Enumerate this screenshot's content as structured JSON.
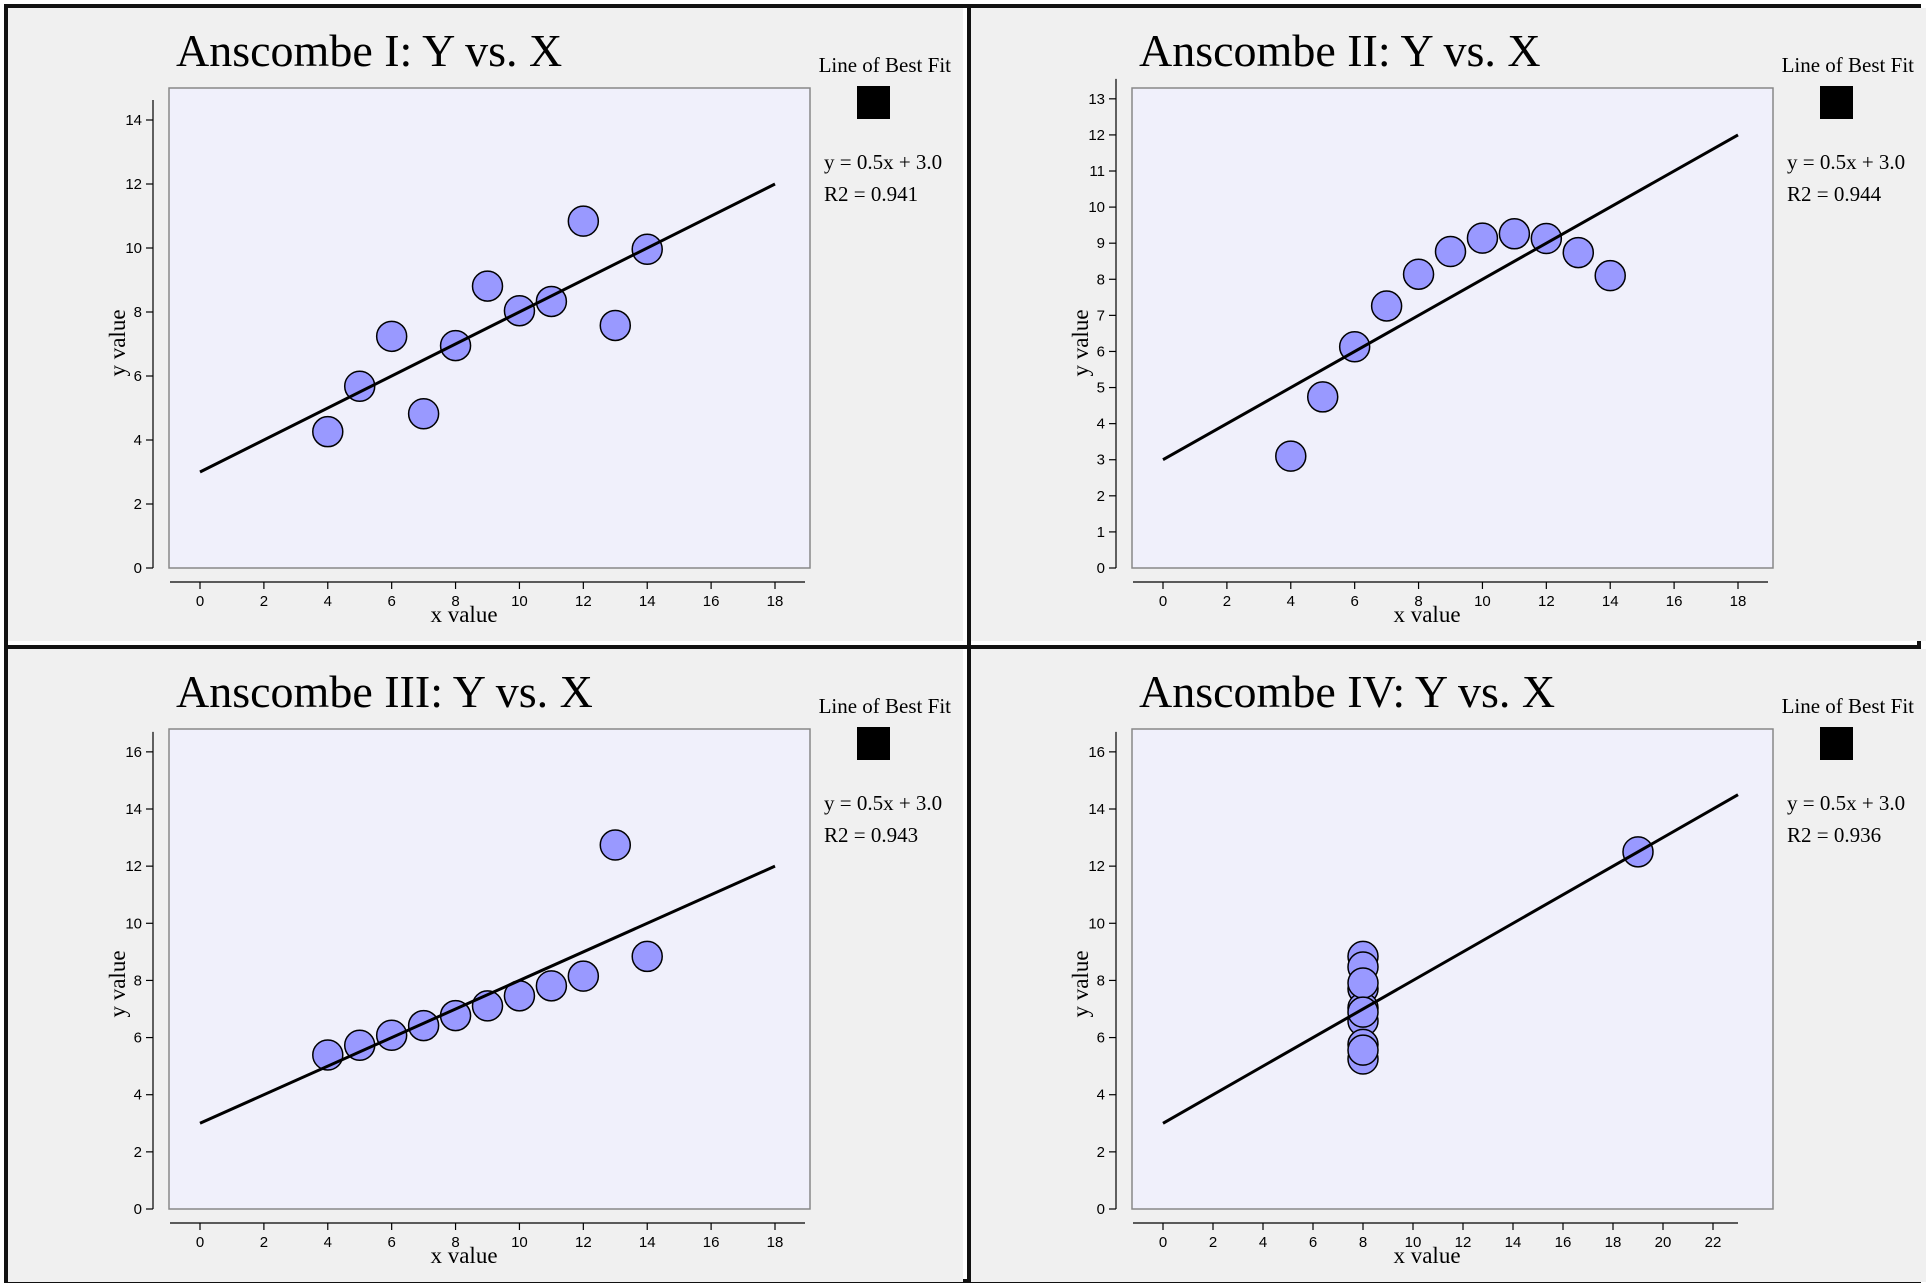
{
  "chart_data": [
    {
      "type": "scatter",
      "title": "Anscombe I: Y vs. X",
      "xlabel": "x value",
      "ylabel": "y value",
      "legend_title": "Line of Best Fit",
      "fit_equation": "y = 0.5x + 3.0",
      "r2_label": "R2 = 0.941",
      "fit_line": {
        "slope": 0.5,
        "intercept": 3.0,
        "x_range": [
          0,
          18
        ]
      },
      "xlim": [
        0,
        18
      ],
      "ylim": [
        0,
        15
      ],
      "x_ticks": [
        0,
        2,
        4,
        6,
        8,
        10,
        12,
        14,
        16,
        18
      ],
      "y_ticks": [
        0,
        2,
        4,
        6,
        8,
        10,
        12,
        14
      ],
      "points": {
        "x": [
          10,
          8,
          13,
          9,
          11,
          14,
          6,
          4,
          12,
          7,
          5
        ],
        "y": [
          8.04,
          6.95,
          7.58,
          8.81,
          8.33,
          9.96,
          7.24,
          4.26,
          10.84,
          4.82,
          5.68
        ]
      }
    },
    {
      "type": "scatter",
      "title": "Anscombe II: Y vs. X",
      "xlabel": "x value",
      "ylabel": "y value",
      "legend_title": "Line of Best Fit",
      "fit_equation": "y = 0.5x + 3.0",
      "r2_label": "R2 = 0.944",
      "fit_line": {
        "slope": 0.5,
        "intercept": 3.0,
        "x_range": [
          0,
          18
        ]
      },
      "xlim": [
        0,
        18
      ],
      "ylim": [
        0,
        13.3
      ],
      "x_ticks": [
        0,
        2,
        4,
        6,
        8,
        10,
        12,
        14,
        16,
        18
      ],
      "y_ticks": [
        0,
        1,
        2,
        3,
        4,
        5,
        6,
        7,
        8,
        9,
        10,
        11,
        12,
        13
      ],
      "points": {
        "x": [
          10,
          8,
          13,
          9,
          11,
          14,
          6,
          4,
          12,
          7,
          5
        ],
        "y": [
          9.14,
          8.14,
          8.74,
          8.77,
          9.26,
          8.1,
          6.13,
          3.1,
          9.13,
          7.26,
          4.74
        ]
      }
    },
    {
      "type": "scatter",
      "title": "Anscombe III: Y vs. X",
      "xlabel": "x value",
      "ylabel": "y value",
      "legend_title": "Line of Best Fit",
      "fit_equation": "y = 0.5x + 3.0",
      "r2_label": "R2 = 0.943",
      "fit_line": {
        "slope": 0.5,
        "intercept": 3.0,
        "x_range": [
          0,
          18
        ]
      },
      "xlim": [
        0,
        18
      ],
      "ylim": [
        0,
        16.8
      ],
      "x_ticks": [
        0,
        2,
        4,
        6,
        8,
        10,
        12,
        14,
        16,
        18
      ],
      "y_ticks": [
        0,
        2,
        4,
        6,
        8,
        10,
        12,
        14,
        16
      ],
      "points": {
        "x": [
          10,
          8,
          13,
          9,
          11,
          14,
          6,
          4,
          12,
          7,
          5
        ],
        "y": [
          7.46,
          6.77,
          12.74,
          7.11,
          7.81,
          8.84,
          6.08,
          5.39,
          8.15,
          6.42,
          5.73
        ]
      }
    },
    {
      "type": "scatter",
      "title": "Anscombe IV: Y vs. X",
      "xlabel": "x value",
      "ylabel": "y value",
      "legend_title": "Line of Best Fit",
      "fit_equation": "y = 0.5x + 3.0",
      "r2_label": "R2 = 0.936",
      "fit_line": {
        "slope": 0.5,
        "intercept": 3.0,
        "x_range": [
          0,
          23
        ]
      },
      "xlim": [
        0,
        23
      ],
      "ylim": [
        0,
        16.8
      ],
      "x_ticks": [
        0,
        2,
        4,
        6,
        8,
        10,
        12,
        14,
        16,
        18,
        20,
        22
      ],
      "y_ticks": [
        0,
        2,
        4,
        6,
        8,
        10,
        12,
        14,
        16
      ],
      "points": {
        "x": [
          8,
          8,
          8,
          8,
          8,
          8,
          8,
          19,
          8,
          8,
          8
        ],
        "y": [
          6.58,
          5.76,
          7.71,
          8.84,
          8.47,
          7.04,
          5.25,
          12.5,
          5.56,
          7.91,
          6.89
        ]
      }
    }
  ]
}
